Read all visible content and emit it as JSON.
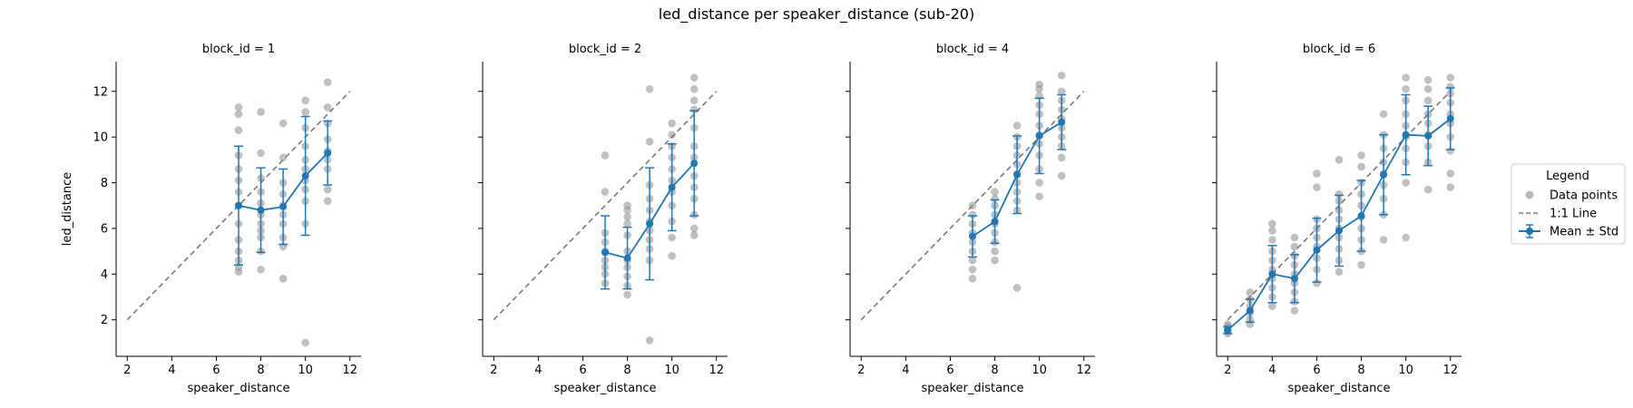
{
  "figure": {
    "title": "led_distance per speaker_distance (sub-20)"
  },
  "colors": {
    "points": "#8c8c8c",
    "mean": "#1f77b4",
    "identity": "#7a7a7a",
    "axis": "#000000"
  },
  "chart_data": [
    {
      "type": "scatter",
      "title": "block_id = 1",
      "xlabel": "speaker_distance",
      "ylabel": "led_distance",
      "xlim": [
        1.5,
        12.5
      ],
      "ylim": [
        0.4,
        13.3
      ],
      "xticks": [
        2,
        4,
        6,
        8,
        10,
        12
      ],
      "yticks": [
        2,
        4,
        6,
        8,
        10,
        12
      ],
      "points": [
        [
          7,
          4.1
        ],
        [
          7,
          4.3
        ],
        [
          7,
          4.6
        ],
        [
          7,
          5.0
        ],
        [
          7,
          5.5
        ],
        [
          7,
          6.2
        ],
        [
          7,
          7.0
        ],
        [
          7,
          7.6
        ],
        [
          7,
          8.1
        ],
        [
          7,
          8.6
        ],
        [
          7,
          9.2
        ],
        [
          7,
          10.3
        ],
        [
          7,
          11.0
        ],
        [
          7,
          11.3
        ],
        [
          8,
          4.2
        ],
        [
          8,
          5.0
        ],
        [
          8,
          5.6
        ],
        [
          8,
          5.9
        ],
        [
          8,
          6.2
        ],
        [
          8,
          6.6
        ],
        [
          8,
          7.1
        ],
        [
          8,
          7.6
        ],
        [
          8,
          8.2
        ],
        [
          8,
          9.3
        ],
        [
          8,
          11.1
        ],
        [
          9,
          3.8
        ],
        [
          9,
          5.2
        ],
        [
          9,
          5.6
        ],
        [
          9,
          6.2
        ],
        [
          9,
          6.6
        ],
        [
          9,
          7.0
        ],
        [
          9,
          7.5
        ],
        [
          9,
          8.0
        ],
        [
          9,
          9.1
        ],
        [
          9,
          10.6
        ],
        [
          10,
          1.0
        ],
        [
          10,
          6.2
        ],
        [
          10,
          7.2
        ],
        [
          10,
          7.7
        ],
        [
          10,
          8.1
        ],
        [
          10,
          8.6
        ],
        [
          10,
          9.0
        ],
        [
          10,
          9.6
        ],
        [
          10,
          10.4
        ],
        [
          10,
          11.1
        ],
        [
          10,
          11.6
        ],
        [
          11,
          7.2
        ],
        [
          11,
          7.7
        ],
        [
          11,
          8.6
        ],
        [
          11,
          9.0
        ],
        [
          11,
          9.4
        ],
        [
          11,
          9.9
        ],
        [
          11,
          10.6
        ],
        [
          11,
          11.3
        ],
        [
          11,
          12.4
        ]
      ],
      "mean": [
        [
          7,
          7.0
        ],
        [
          8,
          6.8
        ],
        [
          9,
          6.95
        ],
        [
          10,
          8.3
        ],
        [
          11,
          9.3
        ]
      ],
      "std": [
        2.6,
        1.85,
        1.65,
        2.6,
        1.4
      ],
      "identity_line": [
        [
          2,
          2
        ],
        [
          12,
          12
        ]
      ]
    },
    {
      "type": "scatter",
      "title": "block_id = 2",
      "xlabel": "speaker_distance",
      "ylabel": "",
      "xlim": [
        1.5,
        12.5
      ],
      "ylim": [
        0.4,
        13.3
      ],
      "xticks": [
        2,
        4,
        6,
        8,
        10,
        12
      ],
      "yticks": [
        2,
        4,
        6,
        8,
        10,
        12
      ],
      "points": [
        [
          7,
          3.6
        ],
        [
          7,
          4.0
        ],
        [
          7,
          4.3
        ],
        [
          7,
          4.6
        ],
        [
          7,
          5.0
        ],
        [
          7,
          5.4
        ],
        [
          7,
          5.8
        ],
        [
          7,
          7.6
        ],
        [
          7,
          9.2
        ],
        [
          8,
          3.1
        ],
        [
          8,
          3.5
        ],
        [
          8,
          3.9
        ],
        [
          8,
          4.3
        ],
        [
          8,
          4.6
        ],
        [
          8,
          5.0
        ],
        [
          8,
          5.7
        ],
        [
          8,
          6.2
        ],
        [
          8,
          6.5
        ],
        [
          8,
          6.8
        ],
        [
          8,
          7.0
        ],
        [
          9,
          1.1
        ],
        [
          9,
          4.6
        ],
        [
          9,
          5.1
        ],
        [
          9,
          5.5
        ],
        [
          9,
          5.9
        ],
        [
          9,
          6.3
        ],
        [
          9,
          6.8
        ],
        [
          9,
          7.3
        ],
        [
          9,
          7.9
        ],
        [
          9,
          9.8
        ],
        [
          9,
          12.1
        ],
        [
          10,
          4.8
        ],
        [
          10,
          5.6
        ],
        [
          10,
          6.3
        ],
        [
          10,
          7.0
        ],
        [
          10,
          7.6
        ],
        [
          10,
          8.1
        ],
        [
          10,
          8.6
        ],
        [
          10,
          9.1
        ],
        [
          10,
          9.6
        ],
        [
          10,
          10.1
        ],
        [
          10,
          10.6
        ],
        [
          11,
          5.7
        ],
        [
          11,
          6.0
        ],
        [
          11,
          6.6
        ],
        [
          11,
          7.3
        ],
        [
          11,
          7.8
        ],
        [
          11,
          8.3
        ],
        [
          11,
          9.1
        ],
        [
          11,
          9.6
        ],
        [
          11,
          10.4
        ],
        [
          11,
          11.2
        ],
        [
          11,
          11.6
        ],
        [
          11,
          12.1
        ],
        [
          11,
          12.6
        ]
      ],
      "mean": [
        [
          7,
          4.95
        ],
        [
          8,
          4.7
        ],
        [
          9,
          6.2
        ],
        [
          10,
          7.8
        ],
        [
          11,
          8.85
        ]
      ],
      "std": [
        1.6,
        1.35,
        2.45,
        1.9,
        2.3
      ],
      "identity_line": [
        [
          2,
          2
        ],
        [
          12,
          12
        ]
      ]
    },
    {
      "type": "scatter",
      "title": "block_id = 4",
      "xlabel": "speaker_distance",
      "ylabel": "",
      "xlim": [
        1.5,
        12.5
      ],
      "ylim": [
        0.4,
        13.3
      ],
      "xticks": [
        2,
        4,
        6,
        8,
        10,
        12
      ],
      "yticks": [
        2,
        4,
        6,
        8,
        10,
        12
      ],
      "points": [
        [
          7,
          3.8
        ],
        [
          7,
          4.2
        ],
        [
          7,
          4.6
        ],
        [
          7,
          5.0
        ],
        [
          7,
          5.4
        ],
        [
          7,
          5.8
        ],
        [
          7,
          6.2
        ],
        [
          7,
          6.6
        ],
        [
          7,
          7.0
        ],
        [
          8,
          4.6
        ],
        [
          8,
          5.0
        ],
        [
          8,
          5.4
        ],
        [
          8,
          5.8
        ],
        [
          8,
          6.2
        ],
        [
          8,
          6.6
        ],
        [
          8,
          7.0
        ],
        [
          8,
          7.3
        ],
        [
          8,
          7.6
        ],
        [
          9,
          3.4
        ],
        [
          9,
          6.8
        ],
        [
          9,
          7.2
        ],
        [
          9,
          7.6
        ],
        [
          9,
          8.0
        ],
        [
          9,
          8.4
        ],
        [
          9,
          8.8
        ],
        [
          9,
          9.2
        ],
        [
          9,
          9.6
        ],
        [
          9,
          10.0
        ],
        [
          9,
          10.5
        ],
        [
          10,
          7.4
        ],
        [
          10,
          8.0
        ],
        [
          10,
          8.6
        ],
        [
          10,
          9.2
        ],
        [
          10,
          9.7
        ],
        [
          10,
          10.1
        ],
        [
          10,
          10.5
        ],
        [
          10,
          11.0
        ],
        [
          10,
          11.4
        ],
        [
          10,
          11.8
        ],
        [
          10,
          12.1
        ],
        [
          10,
          12.3
        ],
        [
          11,
          8.3
        ],
        [
          11,
          9.1
        ],
        [
          11,
          9.6
        ],
        [
          11,
          10.0
        ],
        [
          11,
          10.4
        ],
        [
          11,
          10.8
        ],
        [
          11,
          11.2
        ],
        [
          11,
          11.6
        ],
        [
          11,
          12.0
        ],
        [
          11,
          12.7
        ]
      ],
      "mean": [
        [
          7,
          5.65
        ],
        [
          8,
          6.3
        ],
        [
          9,
          8.35
        ],
        [
          10,
          10.05
        ],
        [
          11,
          10.65
        ]
      ],
      "std": [
        0.9,
        0.95,
        1.7,
        1.65,
        1.2
      ],
      "identity_line": [
        [
          2,
          2
        ],
        [
          12,
          12
        ]
      ]
    },
    {
      "type": "scatter",
      "title": "block_id = 6",
      "xlabel": "speaker_distance",
      "ylabel": "",
      "xlim": [
        1.5,
        12.5
      ],
      "ylim": [
        0.4,
        13.3
      ],
      "xticks": [
        2,
        4,
        6,
        8,
        10,
        12
      ],
      "yticks": [
        2,
        4,
        6,
        8,
        10,
        12
      ],
      "points": [
        [
          2,
          1.4
        ],
        [
          2,
          1.5
        ],
        [
          2,
          1.6
        ],
        [
          2,
          1.7
        ],
        [
          2,
          1.8
        ],
        [
          3,
          1.8
        ],
        [
          3,
          2.0
        ],
        [
          3,
          2.3
        ],
        [
          3,
          2.6
        ],
        [
          3,
          2.9
        ],
        [
          3,
          3.2
        ],
        [
          4,
          2.6
        ],
        [
          4,
          3.0
        ],
        [
          4,
          3.4
        ],
        [
          4,
          3.8
        ],
        [
          4,
          4.2
        ],
        [
          4,
          4.6
        ],
        [
          4,
          5.0
        ],
        [
          4,
          5.5
        ],
        [
          4,
          5.9
        ],
        [
          4,
          6.2
        ],
        [
          5,
          2.4
        ],
        [
          5,
          2.8
        ],
        [
          5,
          3.2
        ],
        [
          5,
          3.6
        ],
        [
          5,
          4.0
        ],
        [
          5,
          4.4
        ],
        [
          5,
          4.8
        ],
        [
          5,
          5.2
        ],
        [
          5,
          5.6
        ],
        [
          6,
          3.6
        ],
        [
          6,
          4.2
        ],
        [
          6,
          4.7
        ],
        [
          6,
          5.2
        ],
        [
          6,
          5.6
        ],
        [
          6,
          6.0
        ],
        [
          6,
          6.4
        ],
        [
          6,
          7.8
        ],
        [
          6,
          8.4
        ],
        [
          7,
          4.1
        ],
        [
          7,
          4.6
        ],
        [
          7,
          5.1
        ],
        [
          7,
          5.6
        ],
        [
          7,
          6.0
        ],
        [
          7,
          6.4
        ],
        [
          7,
          6.8
        ],
        [
          7,
          7.2
        ],
        [
          7,
          7.5
        ],
        [
          7,
          9.0
        ],
        [
          8,
          4.4
        ],
        [
          8,
          5.0
        ],
        [
          8,
          5.5
        ],
        [
          8,
          6.0
        ],
        [
          8,
          6.5
        ],
        [
          8,
          7.0
        ],
        [
          8,
          7.5
        ],
        [
          8,
          8.0
        ],
        [
          8,
          8.7
        ],
        [
          8,
          9.2
        ],
        [
          9,
          5.5
        ],
        [
          9,
          6.6
        ],
        [
          9,
          7.3
        ],
        [
          9,
          7.9
        ],
        [
          9,
          8.4
        ],
        [
          9,
          8.9
        ],
        [
          9,
          9.5
        ],
        [
          9,
          10.1
        ],
        [
          9,
          11.0
        ],
        [
          10,
          5.6
        ],
        [
          10,
          8.0
        ],
        [
          10,
          8.9
        ],
        [
          10,
          9.5
        ],
        [
          10,
          10.0
        ],
        [
          10,
          10.5
        ],
        [
          10,
          11.0
        ],
        [
          10,
          11.6
        ],
        [
          10,
          12.1
        ],
        [
          10,
          12.6
        ],
        [
          11,
          7.7
        ],
        [
          11,
          8.9
        ],
        [
          11,
          9.6
        ],
        [
          11,
          10.1
        ],
        [
          11,
          10.6
        ],
        [
          11,
          11.0
        ],
        [
          11,
          11.6
        ],
        [
          11,
          12.1
        ],
        [
          11,
          12.5
        ],
        [
          12,
          7.8
        ],
        [
          12,
          8.4
        ],
        [
          12,
          9.4
        ],
        [
          12,
          10.0
        ],
        [
          12,
          10.6
        ],
        [
          12,
          11.0
        ],
        [
          12,
          11.5
        ],
        [
          12,
          11.9
        ],
        [
          12,
          12.2
        ],
        [
          12,
          12.6
        ]
      ],
      "mean": [
        [
          2,
          1.55
        ],
        [
          3,
          2.4
        ],
        [
          4,
          4.0
        ],
        [
          5,
          3.8
        ],
        [
          6,
          5.05
        ],
        [
          7,
          5.9
        ],
        [
          8,
          6.55
        ],
        [
          9,
          8.35
        ],
        [
          10,
          10.1
        ],
        [
          11,
          10.05
        ],
        [
          12,
          10.8
        ]
      ],
      "std": [
        0.15,
        0.5,
        1.25,
        1.05,
        1.4,
        1.55,
        1.55,
        1.75,
        1.75,
        1.3,
        1.35
      ],
      "identity_line": [
        [
          2,
          2
        ],
        [
          12,
          12
        ]
      ]
    }
  ],
  "legend": {
    "title": "Legend",
    "items": [
      "Data points",
      "1:1 Line",
      "Mean ± Std"
    ]
  }
}
